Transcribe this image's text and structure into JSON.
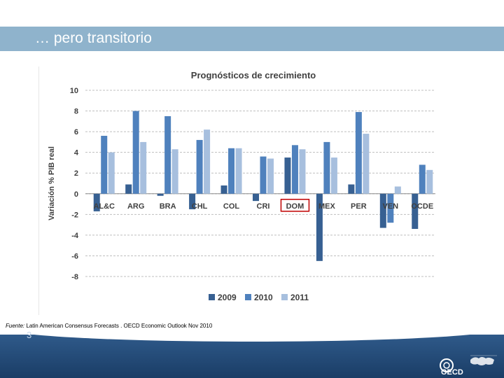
{
  "slide": {
    "title": "… pero transitorio",
    "page_number": "3",
    "source_label": "Fuente:",
    "source_text": " Latin American Consensus Forecasts , OECD Economic Outlook Nov 2010"
  },
  "logo": {
    "text": "OECD"
  },
  "colors": {
    "series_2009": "#376092",
    "series_2010": "#4f81bd",
    "series_2011": "#a7bfde",
    "highlight_box": "#c00000",
    "title_bar": "#8fb3cc"
  },
  "chart_data": {
    "type": "bar",
    "title": "Prognósticos de crecimiento",
    "ylabel": "Variación % PIB real",
    "xlabel": "",
    "ylim": [
      -8,
      10
    ],
    "yticks": [
      10,
      8,
      6,
      4,
      2,
      0,
      -2,
      -4,
      -6,
      -8
    ],
    "grid": true,
    "legend_position": "bottom",
    "categories": [
      "AL&C",
      "ARG",
      "BRA",
      "CHL",
      "COL",
      "CRI",
      "DOM",
      "MEX",
      "PER",
      "VEN",
      "OCDE"
    ],
    "highlighted_category": "DOM",
    "series": [
      {
        "name": "2009",
        "values": [
          -1.7,
          0.9,
          -0.2,
          -1.5,
          0.8,
          -0.7,
          3.5,
          -6.5,
          0.9,
          -3.3,
          -3.4
        ]
      },
      {
        "name": "2010",
        "values": [
          5.6,
          8.0,
          7.5,
          5.2,
          4.4,
          3.6,
          4.7,
          5.0,
          7.9,
          -2.8,
          2.8
        ]
      },
      {
        "name": "2011",
        "values": [
          4.0,
          5.0,
          4.3,
          6.2,
          4.4,
          3.4,
          4.3,
          3.5,
          5.8,
          0.7,
          2.3
        ]
      }
    ]
  }
}
